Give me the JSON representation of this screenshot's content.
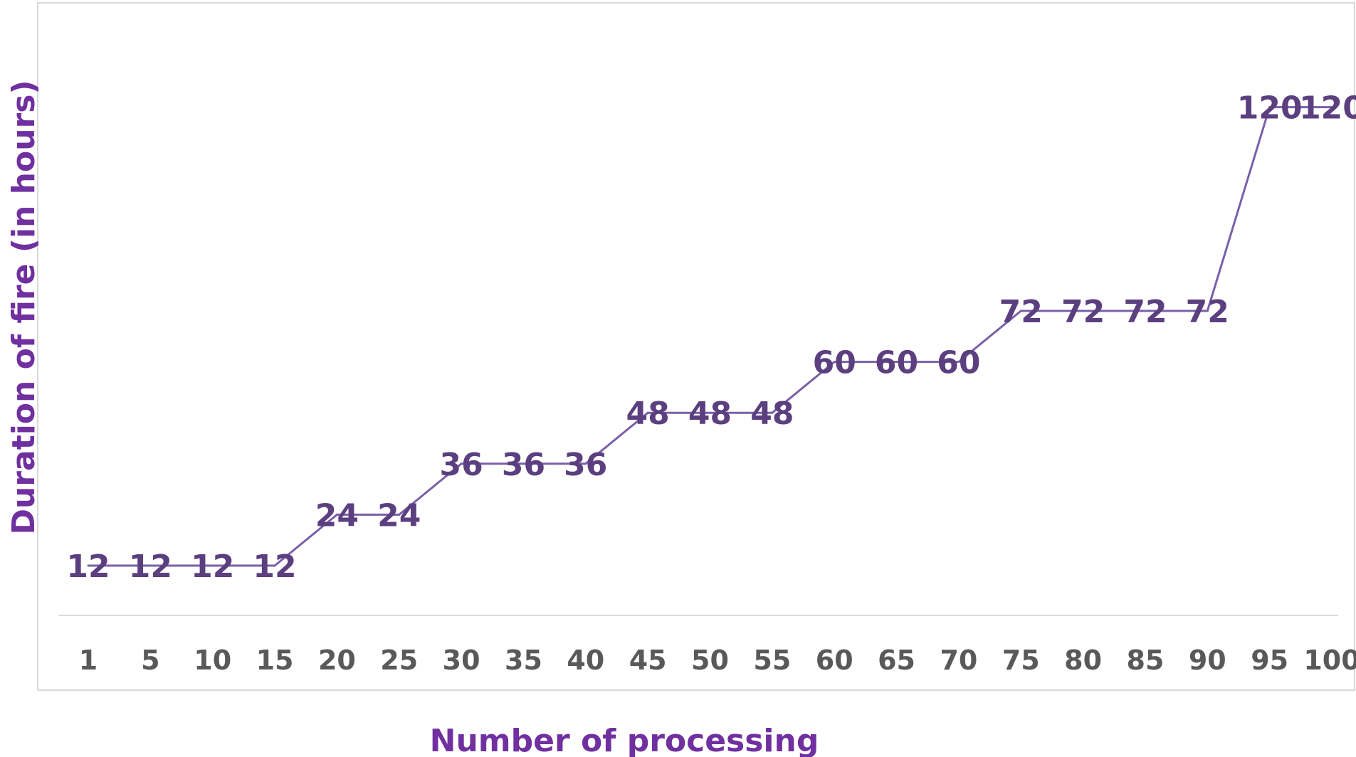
{
  "chart_data": {
    "type": "line",
    "title": "",
    "xlabel": "Number of processing",
    "ylabel": "Duration of fire (in hours)",
    "categories": [
      "1",
      "5",
      "10",
      "15",
      "20",
      "25",
      "30",
      "35",
      "40",
      "45",
      "50",
      "55",
      "60",
      "65",
      "70",
      "75",
      "80",
      "85",
      "90",
      "95",
      "100"
    ],
    "series": [
      {
        "values": [
          12,
          12,
          12,
          12,
          24,
          24,
          36,
          36,
          36,
          48,
          48,
          48,
          60,
          60,
          60,
          72,
          72,
          72,
          72,
          120,
          120
        ]
      }
    ],
    "ylim": [
      0,
      130
    ],
    "grid": false,
    "show_y_axis_labels": false,
    "data_labels": true,
    "colors": {
      "line": "#7b5fa8",
      "data_label": "#5b3f7f",
      "tick_label": "#595959",
      "axis_title": "#7030a0",
      "axis_line": "#d9d9d9",
      "plot_border": "#d9d9d9"
    }
  }
}
